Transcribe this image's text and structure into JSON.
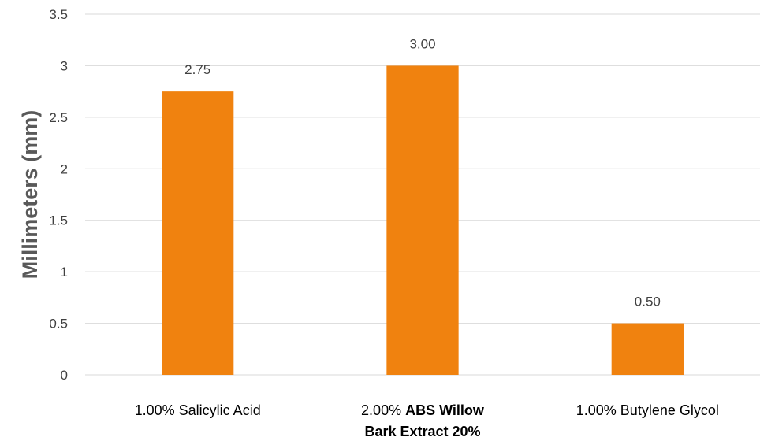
{
  "chart_data": {
    "type": "bar",
    "categories": [
      {
        "label": "1.00% Salicylic Acid",
        "lines": [
          [
            {
              "t": "1.00% Salicylic Acid",
              "b": false
            }
          ]
        ]
      },
      {
        "label": "2.00% ABS Willow Bark Extract 20%",
        "lines": [
          [
            {
              "t": "2.00% ",
              "b": false
            },
            {
              "t": "ABS Willow",
              "b": true
            }
          ],
          [
            {
              "t": "Bark Extract 20%",
              "b": true
            }
          ]
        ]
      },
      {
        "label": "1.00% Butylene Glycol",
        "lines": [
          [
            {
              "t": "1.00% Butylene Glycol",
              "b": false
            }
          ]
        ]
      }
    ],
    "values": [
      2.75,
      3.0,
      0.5
    ],
    "data_labels": [
      "2.75",
      "3.00",
      "0.50"
    ],
    "yticks": [
      0,
      0.5,
      1,
      1.5,
      2,
      2.5,
      3,
      3.5
    ],
    "ytick_labels": [
      "0",
      "0.5",
      "1",
      "1.5",
      "2",
      "2.5",
      "3",
      "3.5"
    ],
    "ylim": [
      0,
      3.5
    ],
    "ylabel": "Millimeters (mm)",
    "xlabel": "",
    "title": "",
    "grid": true,
    "legend": "none",
    "bar_color": "#f0820f",
    "grid_color": "#d9d9d9"
  }
}
